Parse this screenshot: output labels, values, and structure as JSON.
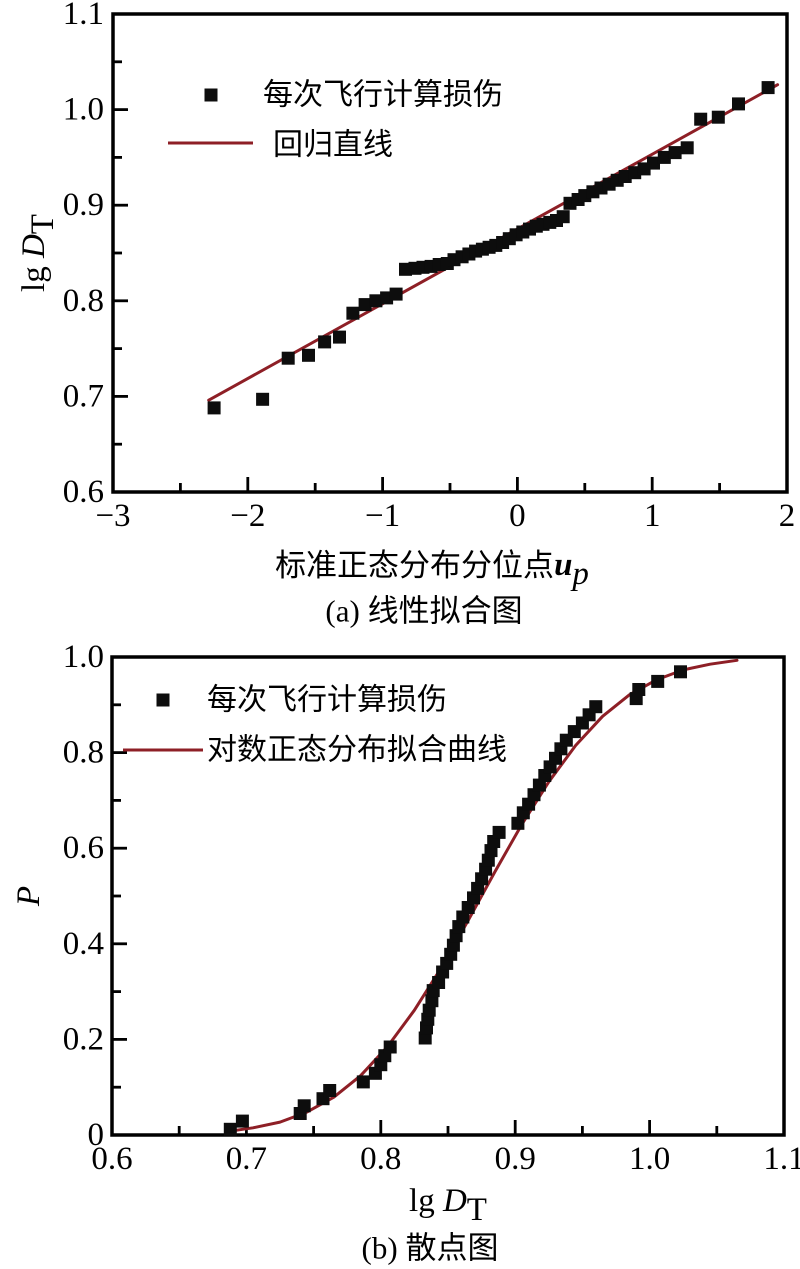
{
  "figure": {
    "background": "#ffffff",
    "frame_color": "#000000",
    "marker_color": "#0d0d0d",
    "fit_line_color": "#8e1f26"
  },
  "chart_data": [
    {
      "id": "a",
      "type": "scatter",
      "caption": "(a) 线性拟合图",
      "xlabel_parts": [
        "标准正态分布分位点",
        "u",
        "p"
      ],
      "ylabel_parts": [
        "lg ",
        "D",
        "T"
      ],
      "xlim": [
        -3,
        2
      ],
      "ylim": [
        0.6,
        1.1
      ],
      "grid": false,
      "legend_position": "upper-left-inside",
      "x_ticks": {
        "values": [
          -3,
          -2,
          -1,
          0,
          1,
          2
        ],
        "labels": [
          "−3",
          "−2",
          "−1",
          "0",
          "1",
          "2"
        ],
        "minor_step": 0.5
      },
      "y_ticks": {
        "values": [
          0.6,
          0.7,
          0.8,
          0.9,
          1.0,
          1.1
        ],
        "labels": [
          "0.6",
          "0.7",
          "0.8",
          "0.9",
          "1.0",
          "1.1"
        ],
        "minor_step": 0.05
      },
      "legend": [
        {
          "type": "marker",
          "label": "每次飞行计算损伤"
        },
        {
          "type": "line",
          "label": "回归直线"
        }
      ],
      "series": [
        {
          "name": "每次飞行计算损伤",
          "type": "scatter",
          "x": [
            -2.25,
            -1.89,
            -1.7,
            -1.55,
            -1.43,
            -1.32,
            -1.22,
            -1.13,
            -1.05,
            -0.97,
            -0.9,
            -0.83,
            -0.76,
            -0.7,
            -0.64,
            -0.58,
            -0.52,
            -0.47,
            -0.41,
            -0.36,
            -0.31,
            -0.26,
            -0.21,
            -0.16,
            -0.11,
            -0.06,
            -0.01,
            0.04,
            0.09,
            0.14,
            0.19,
            0.24,
            0.29,
            0.34,
            0.39,
            0.45,
            0.5,
            0.56,
            0.62,
            0.68,
            0.74,
            0.8,
            0.87,
            0.94,
            1.01,
            1.09,
            1.17,
            1.26,
            1.36,
            1.49,
            1.64,
            1.86
          ],
          "y": [
            0.688,
            0.697,
            0.74,
            0.743,
            0.757,
            0.762,
            0.787,
            0.796,
            0.8,
            0.803,
            0.807,
            0.833,
            0.834,
            0.835,
            0.836,
            0.838,
            0.839,
            0.843,
            0.846,
            0.849,
            0.852,
            0.854,
            0.856,
            0.858,
            0.861,
            0.865,
            0.869,
            0.872,
            0.875,
            0.878,
            0.88,
            0.882,
            0.884,
            0.888,
            0.902,
            0.906,
            0.91,
            0.914,
            0.918,
            0.922,
            0.926,
            0.93,
            0.934,
            0.938,
            0.944,
            0.95,
            0.955,
            0.96,
            0.99,
            0.992,
            1.006,
            1.023
          ]
        },
        {
          "name": "回归直线",
          "type": "line",
          "x": [
            -2.29,
            1.93
          ],
          "y": [
            0.696,
            1.026
          ]
        }
      ]
    },
    {
      "id": "b",
      "type": "scatter",
      "caption": "(b) 散点图",
      "xlabel_parts": [
        "lg ",
        "D",
        "T"
      ],
      "ylabel_parts": [
        "P"
      ],
      "xlim": [
        0.6,
        1.1
      ],
      "ylim": [
        0,
        1.0
      ],
      "grid": false,
      "legend_position": "upper-left-inside",
      "x_ticks": {
        "values": [
          0.6,
          0.7,
          0.8,
          0.9,
          1.0,
          1.1
        ],
        "labels": [
          "0.6",
          "0.7",
          "0.8",
          "0.9",
          "1.0",
          "1.1"
        ],
        "minor_step": 0.05
      },
      "y_ticks": {
        "values": [
          0,
          0.2,
          0.4,
          0.6,
          0.8,
          1.0
        ],
        "labels": [
          "0",
          "0.2",
          "0.4",
          "0.6",
          "0.8",
          "1.0"
        ],
        "minor_step": 0.1
      },
      "legend": [
        {
          "type": "marker",
          "label": "每次飞行计算损伤"
        },
        {
          "type": "line",
          "label": "对数正态分布拟合曲线"
        }
      ],
      "series": [
        {
          "name": "每次飞行计算损伤",
          "type": "scatter",
          "x": [
            0.688,
            0.697,
            0.74,
            0.743,
            0.757,
            0.762,
            0.787,
            0.796,
            0.8,
            0.803,
            0.807,
            0.833,
            0.834,
            0.835,
            0.836,
            0.838,
            0.839,
            0.843,
            0.846,
            0.849,
            0.852,
            0.854,
            0.856,
            0.858,
            0.861,
            0.865,
            0.869,
            0.872,
            0.875,
            0.878,
            0.88,
            0.882,
            0.884,
            0.888,
            0.902,
            0.906,
            0.91,
            0.914,
            0.918,
            0.922,
            0.926,
            0.93,
            0.934,
            0.938,
            0.944,
            0.95,
            0.955,
            0.96,
            0.99,
            0.992,
            1.006,
            1.023
          ],
          "y": [
            0.012,
            0.029,
            0.045,
            0.061,
            0.076,
            0.093,
            0.111,
            0.129,
            0.147,
            0.166,
            0.184,
            0.203,
            0.224,
            0.242,
            0.261,
            0.281,
            0.302,
            0.319,
            0.341,
            0.359,
            0.378,
            0.397,
            0.417,
            0.436,
            0.456,
            0.476,
            0.496,
            0.516,
            0.536,
            0.556,
            0.575,
            0.595,
            0.614,
            0.633,
            0.652,
            0.674,
            0.692,
            0.712,
            0.732,
            0.752,
            0.77,
            0.788,
            0.808,
            0.826,
            0.844,
            0.862,
            0.879,
            0.896,
            0.913,
            0.932,
            0.949,
            0.969
          ]
        },
        {
          "name": "对数正态分布拟合曲线",
          "type": "line",
          "x": [
            0.685,
            0.705,
            0.725,
            0.745,
            0.765,
            0.785,
            0.805,
            0.825,
            0.845,
            0.865,
            0.885,
            0.905,
            0.925,
            0.945,
            0.965,
            0.985,
            1.005,
            1.025,
            1.045,
            1.065
          ],
          "y": [
            0.007,
            0.015,
            0.027,
            0.048,
            0.079,
            0.124,
            0.185,
            0.261,
            0.35,
            0.449,
            0.551,
            0.65,
            0.739,
            0.815,
            0.876,
            0.921,
            0.952,
            0.973,
            0.985,
            0.993
          ]
        }
      ]
    }
  ]
}
